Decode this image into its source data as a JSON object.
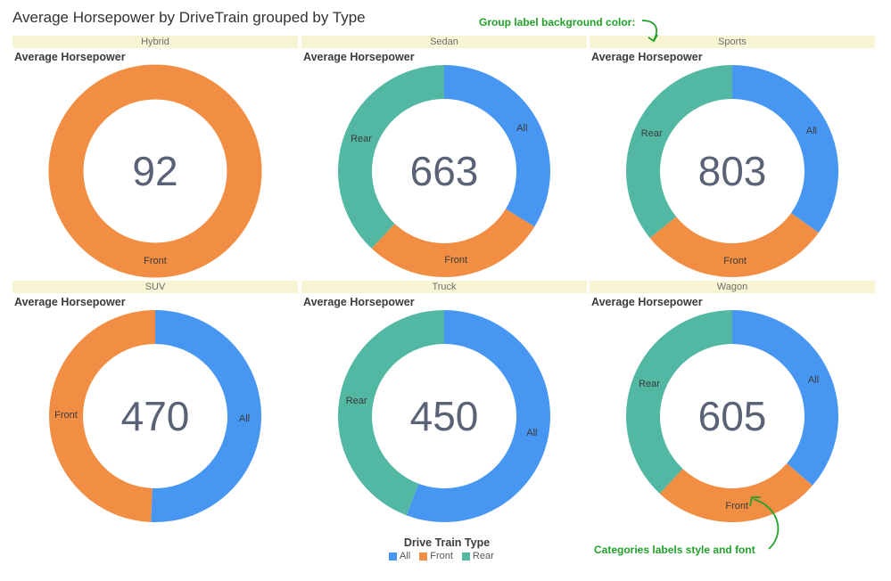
{
  "title": "Average Horsepower by DriveTrain grouped by Type",
  "measure_label": "Average Horsepower",
  "colors": {
    "All": "#4797f2",
    "Front": "#f28e43",
    "Rear": "#52b8a3",
    "group_header_bg": "#f7f5d3",
    "annotation": "#22a12a"
  },
  "legend": {
    "title": "Drive Train Type",
    "items": [
      {
        "label": "All",
        "color": "#4797f2"
      },
      {
        "label": "Front",
        "color": "#f28e43"
      },
      {
        "label": "Rear",
        "color": "#52b8a3"
      }
    ]
  },
  "annotations": {
    "group_label": "Group label background color:",
    "category_labels": "Categories labels style and font"
  },
  "chart_data": [
    {
      "type": "donut",
      "group": "Hybrid",
      "total": 92,
      "categories": [
        "Front"
      ],
      "values": [
        92
      ]
    },
    {
      "type": "donut",
      "group": "Sedan",
      "total": 663,
      "categories": [
        "All",
        "Front",
        "Rear"
      ],
      "values": [
        224,
        187,
        252
      ]
    },
    {
      "type": "donut",
      "group": "Sports",
      "total": 803,
      "categories": [
        "All",
        "Front",
        "Rear"
      ],
      "values": [
        280,
        235,
        288
      ]
    },
    {
      "type": "donut",
      "group": "SUV",
      "total": 470,
      "categories": [
        "All",
        "Front"
      ],
      "values": [
        238,
        232
      ]
    },
    {
      "type": "donut",
      "group": "Truck",
      "total": 450,
      "categories": [
        "All",
        "Rear"
      ],
      "values": [
        251,
        199
      ]
    },
    {
      "type": "donut",
      "group": "Wagon",
      "total": 605,
      "categories": [
        "All",
        "Front",
        "Rear"
      ],
      "values": [
        220,
        155,
        230
      ]
    }
  ]
}
